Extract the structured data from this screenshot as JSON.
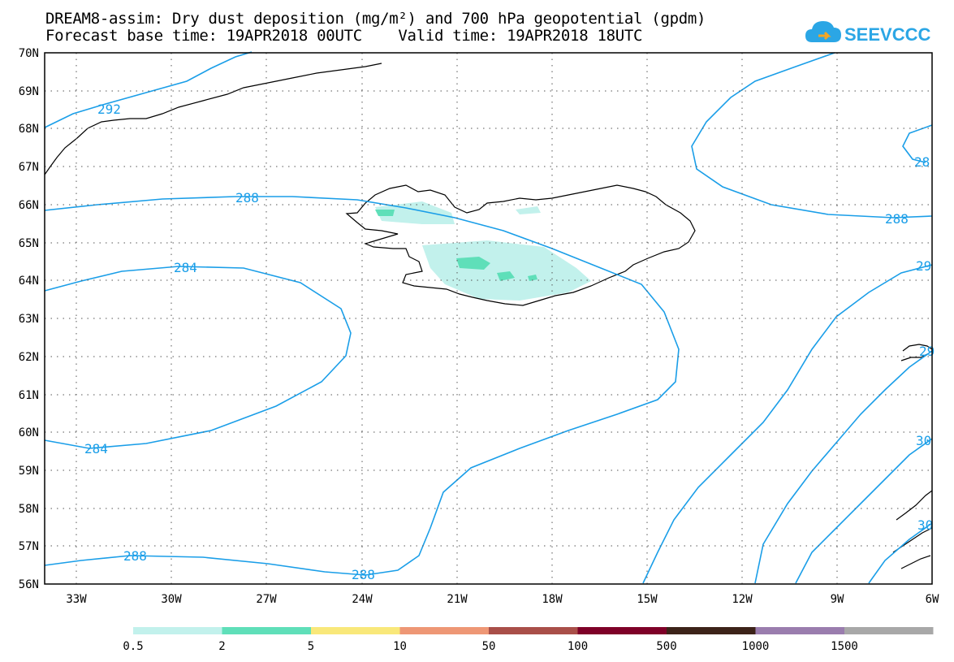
{
  "header": {
    "title_line1": "DREAM8-assim: Dry dust deposition (mg/m²) and 700 hPa geopotential (gpdm)",
    "title_line2": "Forecast base time: 19APR2018 00UTC    Valid time: 19APR2018 18UTC"
  },
  "logo": {
    "text": "SEEVCCC",
    "icon": "cloud-icon"
  },
  "map": {
    "lon_labels": [
      "33W",
      "30W",
      "27W",
      "24W",
      "21W",
      "18W",
      "15W",
      "12W",
      "9W",
      "6W"
    ],
    "lat_labels": [
      "70N",
      "69N",
      "68N",
      "67N",
      "66N",
      "65N",
      "64N",
      "63N",
      "62N",
      "61N",
      "60N",
      "59N",
      "58N",
      "57N",
      "56N"
    ],
    "contour_labels": [
      "292",
      "288",
      "288",
      "284",
      "284",
      "288",
      "288",
      "288",
      "28",
      "29",
      "29",
      "30",
      "30"
    ],
    "contour_color": "#1a9ee8"
  },
  "colorbar": {
    "colors": [
      "#c2f1ec",
      "#5fdfb9",
      "#f9e87a",
      "#ee9775",
      "#a94f49",
      "#7e0028",
      "#3c2319",
      "#9a7dae",
      "#a8a8a8"
    ],
    "labels": [
      "0.5",
      "2",
      "5",
      "10",
      "50",
      "100",
      "500",
      "1000",
      "1500"
    ]
  }
}
